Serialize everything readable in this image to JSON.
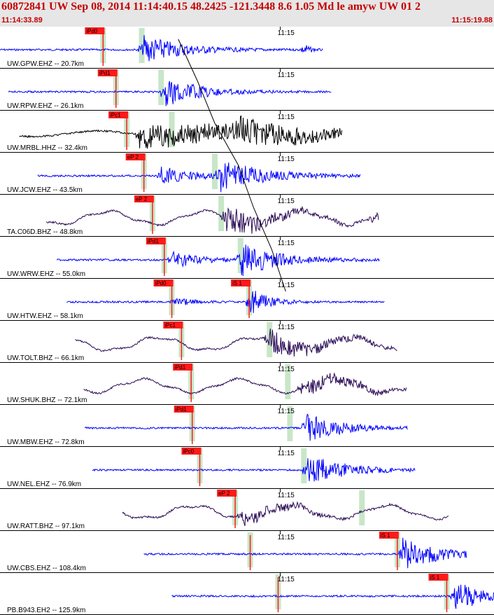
{
  "header": {
    "title": "60872841 UW Sep 08, 2014 11:14:40.15   48.2425 -121.3448  8.6 1.05 Md le amyw UW 01   2",
    "start_time": "11:14:33.89",
    "end_time": "11:15:19.88"
  },
  "colors": {
    "header_text": "#c40000",
    "header_bg": "#e6e6e6",
    "pick_box": "#ff1a1a",
    "pick_bar": "#c8e6c8",
    "trace_blue": "#0000ff",
    "trace_black": "#000000",
    "trace_purple": "#2a0a55",
    "divider": "#000000"
  },
  "chart_data": {
    "type": "line",
    "title": "60872841 UW Sep 08, 2014 11:14:40.15   48.2425 -121.3448  8.6 1.05 Md le amyw UW 01   2",
    "x_unit": "seconds after 11:14:33.89",
    "x_range": [
      0,
      46.0
    ],
    "minute_tick_label": "11:15",
    "minute_tick_x": 26.1,
    "grid": false,
    "traces": [
      {
        "label": "UW.GPW.EHZ -- 20.7km",
        "color": "blue",
        "start": 0.0,
        "end": 30.1,
        "p_pick": "iPd0",
        "p_x": 9.6,
        "s_x": 13.2,
        "amp": [
          {
            "x": 13.3,
            "a": 1.0,
            "d": 3.5
          },
          {
            "x": 28.3,
            "a": 0.5,
            "d": 0.4
          }
        ]
      },
      {
        "label": "UW.RPW.EHZ -- 26.1km",
        "color": "blue",
        "start": 0.8,
        "end": 30.9,
        "p_pick": "iPd1",
        "p_x": 10.8,
        "s_x": 15.0,
        "amp": [
          {
            "x": 15.4,
            "a": 1.0,
            "d": 3.0
          }
        ]
      },
      {
        "label": "UW.MRBL.HHZ -- 32.4km",
        "color": "black",
        "start": 1.8,
        "end": 31.9,
        "p_pick": "iPc1",
        "p_x": 11.8,
        "s_x": 16.0,
        "amp": [
          {
            "x": 13.0,
            "a": 0.85,
            "d": 14.0
          },
          {
            "x": 22.0,
            "a": 0.55,
            "d": 6.0
          }
        ]
      },
      {
        "label": "UW.JCW.EHZ -- 43.5km",
        "color": "blue",
        "start": 3.5,
        "end": 33.6,
        "p_pick": "eP 2",
        "p_x": 13.4,
        "s_x": 20.0,
        "amp": [
          {
            "x": 20.5,
            "a": 1.0,
            "d": 4.0
          },
          {
            "x": 15.0,
            "a": 0.6,
            "d": 3.0
          }
        ]
      },
      {
        "label": "TA.C06D.BHZ -- 48.8km",
        "color": "purple",
        "start": 4.3,
        "end": 35.3,
        "p_pick": "eP 2",
        "p_x": 14.2,
        "s_x": 20.6,
        "amp": [
          {
            "x": 21.0,
            "a": 1.0,
            "d": 4.0
          },
          {
            "x": 34.8,
            "a": 0.5,
            "d": 0.4
          }
        ]
      },
      {
        "label": "UW.WRW.EHZ -- 55.0km",
        "color": "blue",
        "start": 5.3,
        "end": 35.4,
        "p_pick": "iPd1",
        "p_x": 15.3,
        "s_x": 22.4,
        "amp": [
          {
            "x": 22.5,
            "a": 1.0,
            "d": 3.5
          },
          {
            "x": 16.0,
            "a": 0.6,
            "d": 2.5
          }
        ]
      },
      {
        "label": "UW.HTW.EHZ -- 58.1km",
        "color": "blue",
        "start": 6.2,
        "end": 35.8,
        "p_pick": "iPd0",
        "p_x": 16.0,
        "s_pick": "iS 1",
        "s_x": 23.2,
        "amp": [
          {
            "x": 23.3,
            "a": 1.0,
            "d": 1.5
          },
          {
            "x": 16.2,
            "a": 0.3,
            "d": 1.5
          }
        ]
      },
      {
        "label": "UW.TOLT.BHZ -- 66.1km",
        "color": "purple",
        "start": 7.0,
        "end": 37.0,
        "p_pick": "iPc1",
        "p_x": 16.9,
        "s_x": 25.1,
        "amp": [
          {
            "x": 25.0,
            "a": 0.75,
            "d": 5.0
          }
        ]
      },
      {
        "label": "UW.SHUK.BHZ -- 72.1km",
        "color": "purple",
        "start": 7.8,
        "end": 37.9,
        "p_pick": "iPd1",
        "p_x": 17.8,
        "s_x": 26.8,
        "amp": [
          {
            "x": 28.0,
            "a": 0.55,
            "d": 5.0
          }
        ]
      },
      {
        "label": "UW.MBW.EHZ -- 72.8km",
        "color": "blue",
        "start": 7.9,
        "end": 38.0,
        "p_pick": "iPd1",
        "p_x": 17.9,
        "s_x": 27.0,
        "amp": [
          {
            "x": 28.5,
            "a": 1.0,
            "d": 3.0
          }
        ]
      },
      {
        "label": "UW.NEL.EHZ -- 76.9km",
        "color": "blue",
        "start": 8.6,
        "end": 38.7,
        "p_pick": "iPc0",
        "p_x": 18.6,
        "s_x": 28.3,
        "amp": [
          {
            "x": 28.6,
            "a": 1.0,
            "d": 3.5
          }
        ]
      },
      {
        "label": "UW.RATT.BHZ -- 97.1km",
        "color": "purple",
        "start": 11.4,
        "end": 41.8,
        "p_pick": "eP 2",
        "p_x": 21.9,
        "s_x": 33.7,
        "amp": [
          {
            "x": 22.5,
            "a": 0.5,
            "d": 4.0
          }
        ]
      },
      {
        "label": "UW.CBS.EHZ -- 108.4km",
        "color": "blue",
        "start": 13.4,
        "end": 43.5,
        "p_pick": "",
        "p_x": 23.3,
        "s_pick": "iS 1",
        "s_x": 37.0,
        "amp": [
          {
            "x": 37.5,
            "a": 1.0,
            "d": 3.5
          }
        ]
      },
      {
        "label": "PB.B943.EH2 -- 125.9km",
        "color": "blue",
        "start": 16.0,
        "end": 46.0,
        "p_pick": "",
        "p_x": 25.9,
        "s_pick": "iS 1",
        "s_x": 41.6,
        "amp": [
          {
            "x": 42.3,
            "a": 1.0,
            "d": 3.0
          }
        ]
      }
    ]
  }
}
